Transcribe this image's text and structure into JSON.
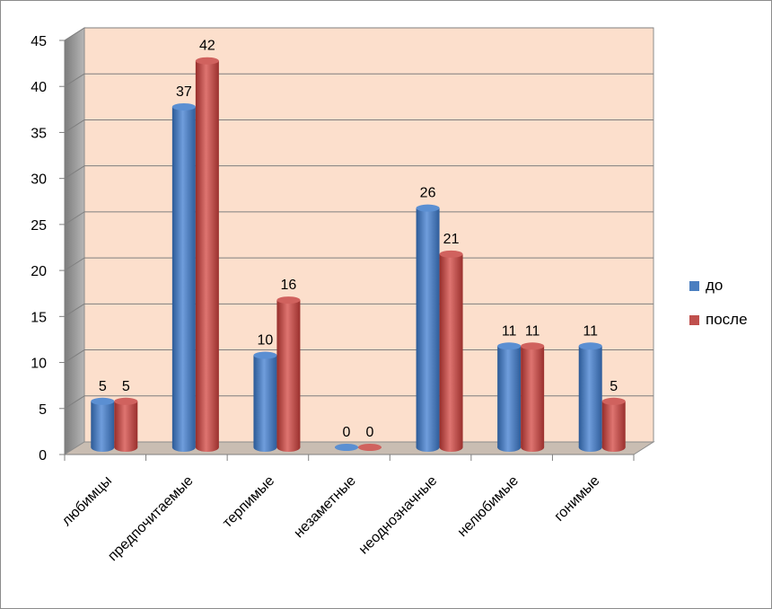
{
  "chart_data": {
    "type": "bar",
    "categories": [
      "любимцы",
      "предпочитаемые",
      "терпимые",
      "незаметные",
      "неоднозначные",
      "нелюбимые",
      "гонимые"
    ],
    "series": [
      {
        "name": "до",
        "values": [
          5,
          37,
          10,
          0,
          26,
          11,
          11
        ],
        "color": "#4a7ec0"
      },
      {
        "name": "после",
        "values": [
          5,
          42,
          16,
          0,
          21,
          11,
          5
        ],
        "color": "#c0504d"
      }
    ],
    "yticks": [
      "0",
      "5",
      "10",
      "15",
      "20",
      "25",
      "30",
      "35",
      "40",
      "45"
    ],
    "ylim": [
      0,
      45
    ],
    "grid": true,
    "legend_position": "right",
    "wall_color": "#fcdfcc",
    "floor_color": "#c9bdb2"
  }
}
